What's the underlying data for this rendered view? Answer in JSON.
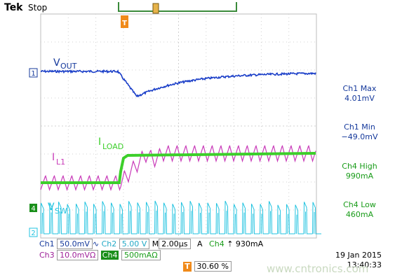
{
  "header": {
    "brand": "Tek",
    "status": "Stop",
    "trigger_marker": "T"
  },
  "traces": {
    "vout_label": "V",
    "vout_sub": "OUT",
    "iload_label": "I",
    "iload_sub": "LOAD",
    "il1_label": "I",
    "il1_sub": "L1",
    "vsw_label": "V",
    "vsw_sub": "SW"
  },
  "channel_markers": {
    "ch1": "1",
    "ch4": "4",
    "ch2": "2"
  },
  "readouts": [
    {
      "line1": "Ch1 Max",
      "line2": "4.01mV"
    },
    {
      "line1": "Ch1 Min",
      "line2": "−49.0mV"
    },
    {
      "line1": "Ch4 High",
      "line2": "990mA"
    },
    {
      "line1": "Ch4 Low",
      "line2": "460mA"
    }
  ],
  "settings": {
    "ch1_label": "Ch1",
    "ch1_value": "50.0mV",
    "ch2_label": "Ch2",
    "ch2_value": "5.00 V",
    "ch3_label": "Ch3",
    "ch3_value": "10.0mVΩ",
    "ch4_label": "Ch4",
    "ch4_value": "500mAΩ",
    "timebase_label": "M",
    "timebase_value": "2.00µs",
    "trigger_mode": "A",
    "trigger_source": "Ch4",
    "trigger_level": "930mA",
    "trigger_position": "30.60 %",
    "date": "19 Jan  2015",
    "time": "13:40:33"
  },
  "colors": {
    "ch1": "#14389b",
    "ch2": "#22c3e0",
    "ch3": "#c83ab8",
    "ch4": "#3ccf2a",
    "grid": "#c8c8c8",
    "trigger": "#f08a1a"
  },
  "watermark": "www.cntronics.com"
}
